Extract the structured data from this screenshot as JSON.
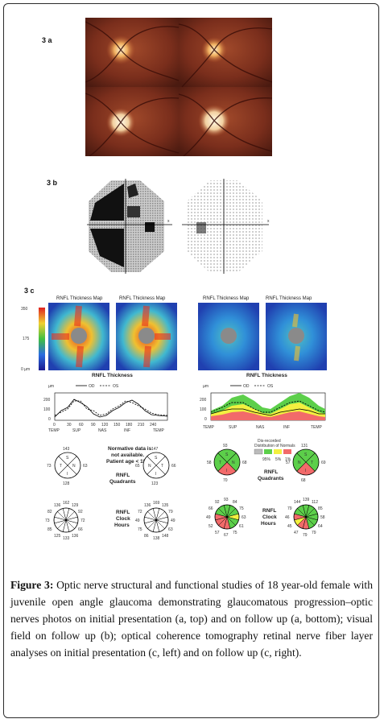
{
  "panels": {
    "a_label": "3 a",
    "b_label": "3 b",
    "c_label": "3 c"
  },
  "oct": {
    "map_title": "RNFL Thickness Map",
    "scale_ticks": [
      "350",
      "175",
      "0 µm"
    ],
    "thickness_title": "RNFL Thickness",
    "unit": "µm",
    "legend_od": "OD",
    "legend_os": "OS",
    "y_ticks": [
      "200",
      "100",
      "0"
    ],
    "x_ticks_left": [
      "0",
      "30",
      "60",
      "90",
      "120",
      "150",
      "180",
      "210",
      "240"
    ],
    "x_cats": [
      "TEMP",
      "SUP",
      "NAS",
      "INF",
      "TEMP"
    ],
    "normative_note_1": "Normative data is",
    "normative_note_2": "not available.",
    "normative_note_3": "Patient age < 18.",
    "quadrants_1": "RNFL",
    "quadrants_2": "Quadrants",
    "clock_1": "RNFL",
    "clock_2": "Clock",
    "clock_3": "Hours",
    "dist_title_1": "Distribution of Normals",
    "dist_pcts": [
      "95%",
      "5%",
      "1%"
    ],
    "quad_letters": [
      "S",
      "T",
      "N",
      "I"
    ]
  },
  "quadrants": {
    "left_od": {
      "s": "143",
      "t": "73",
      "n": "63",
      "i": "128"
    },
    "left_os": {
      "s": "147",
      "t": "66",
      "n": "65",
      "i": "123"
    },
    "right_od": {
      "s": "93",
      "t": "58",
      "n": "68",
      "i": "70"
    },
    "right_os": {
      "s": "131",
      "t": "57",
      "n": "69",
      "i": "68"
    }
  },
  "clock_values": {
    "left_od": [
      "162",
      "129",
      "92",
      "72",
      "66",
      "136",
      "133",
      "125",
      "85",
      "73",
      "82",
      "136"
    ],
    "left_os": [
      "169",
      "135",
      "79",
      "49",
      "63",
      "148",
      "138",
      "86",
      "75",
      "49",
      "72",
      "136"
    ],
    "right_od": [
      "93",
      "84",
      "75",
      "63",
      "61",
      "75",
      "67",
      "57",
      "52",
      "49",
      "66",
      "92"
    ],
    "right_os": [
      "139",
      "112",
      "85",
      "58",
      "64",
      "79",
      "79",
      "47",
      "45",
      "46",
      "79",
      "144"
    ]
  },
  "caption": {
    "label": "Figure 3:",
    "text": " Optic nerve structural and functional studies of 18 year-old female with juvenile open angle glaucoma demonstrating glaucomatous progression–optic nerves photos on initial presentation (a, top) and on follow up (a, bottom); visual field on follow up (b); optical coherence tomography retinal nerve fiber layer analyses on initial presentation (c, left) and on follow up (c, right)."
  },
  "colors": {
    "green": "#5ccf4a",
    "yellow": "#f3f040",
    "red": "#f26a6a",
    "fundus": "#7a2e1c"
  }
}
